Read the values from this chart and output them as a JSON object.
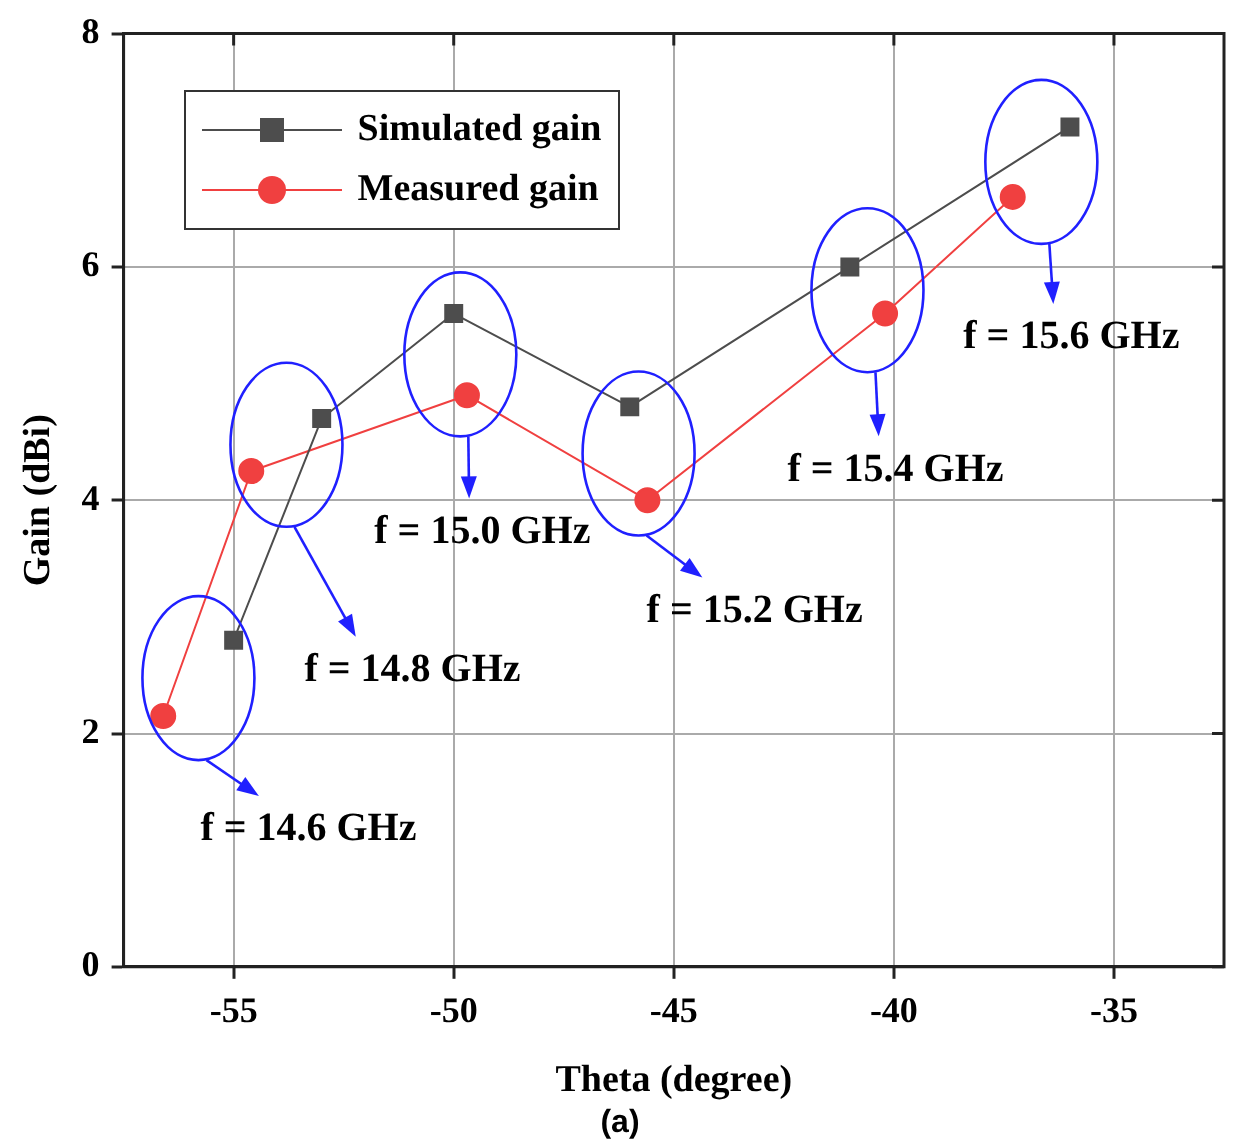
{
  "chart_data": {
    "type": "line",
    "xlabel": "Theta (degree)",
    "ylabel": "Gain (dBi)",
    "subtitle": "(a)",
    "xlim": [
      -57.5,
      -32.5
    ],
    "xticks": [
      -55,
      -50,
      -45,
      -40,
      -35
    ],
    "ylim": [
      0,
      8
    ],
    "yticks": [
      0,
      2,
      4,
      6,
      8
    ],
    "grid": true,
    "legend": "top left",
    "series": [
      {
        "name": "Simulated gain",
        "color": "#4d4d4d",
        "marker": "square",
        "x": [
          -55,
          -53,
          -50,
          -46,
          -41,
          -36
        ],
        "values": [
          2.8,
          4.7,
          5.6,
          4.8,
          6.0,
          7.2
        ]
      },
      {
        "name": "Measured gain",
        "color": "#f04040",
        "marker": "circle",
        "x": [
          -56.6,
          -54.6,
          -49.7,
          -45.6,
          -40.2,
          -37.3
        ],
        "values": [
          2.15,
          4.25,
          4.9,
          4.0,
          5.6,
          6.6
        ]
      }
    ],
    "annotations": [
      "f = 14.6 GHz",
      "f = 14.8 GHz",
      "f = 15.0 GHz",
      "f = 15.2 GHz",
      "f = 15.4 GHz",
      "f = 15.6 GHz"
    ]
  }
}
